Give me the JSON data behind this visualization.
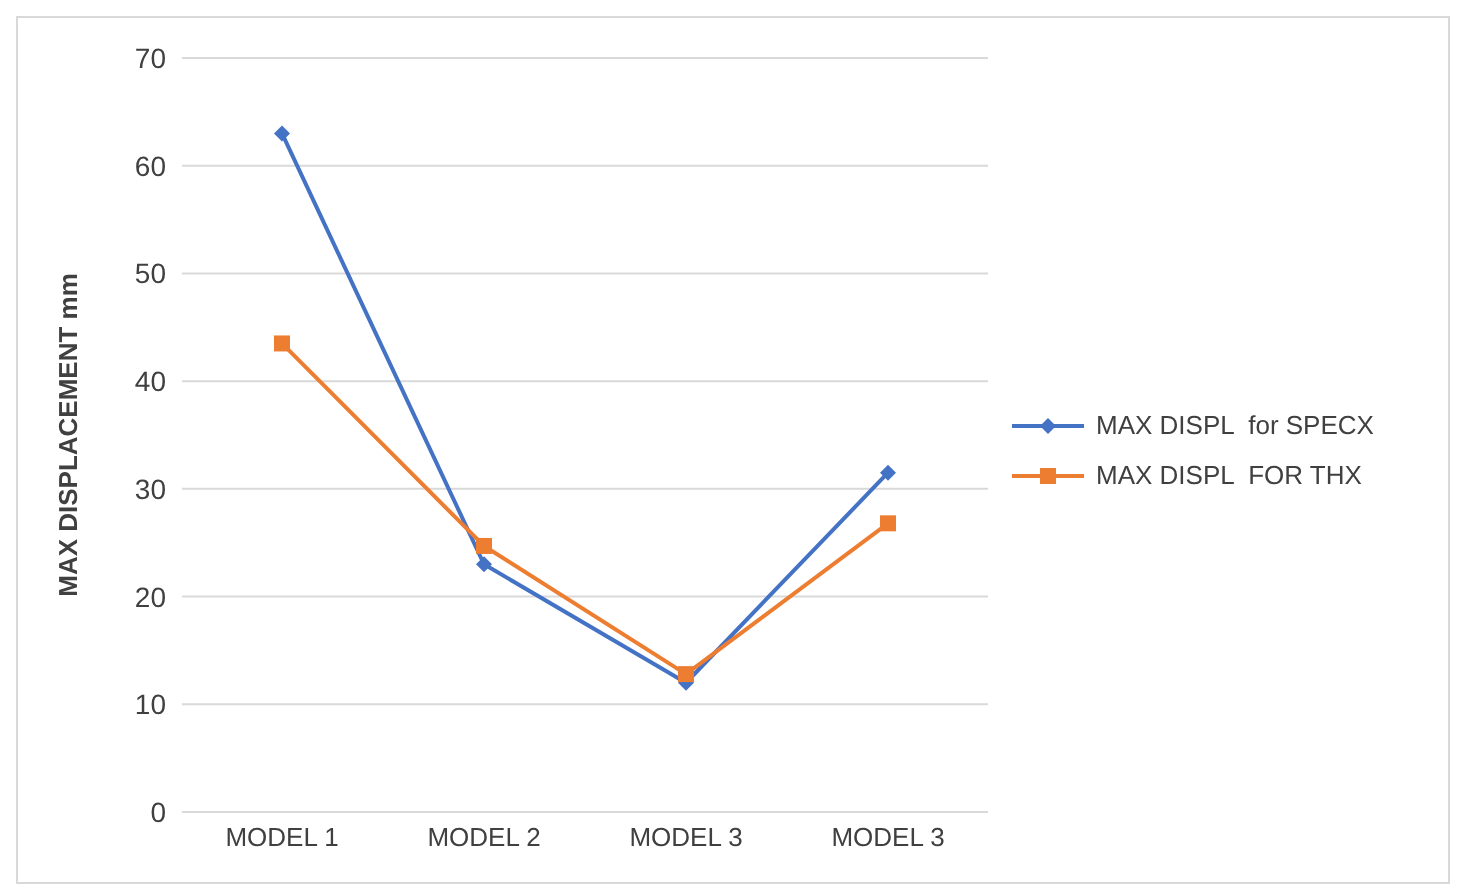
{
  "chart_data": {
    "type": "line",
    "ylabel": "MAX DISPLACEMENT  mm",
    "categories": [
      "MODEL 1",
      "MODEL 2",
      "MODEL 3",
      "MODEL 3"
    ],
    "series": [
      {
        "name": "MAX DISPL  for SPECX",
        "color": "#4472c4",
        "marker": "diamond",
        "values": [
          63,
          23,
          12,
          31.5
        ]
      },
      {
        "name": "MAX DISPL  FOR THX",
        "color": "#ed7d31",
        "marker": "square",
        "values": [
          43.5,
          24.7,
          12.8,
          26.8
        ]
      }
    ],
    "ylim": [
      0,
      70
    ],
    "yticks": [
      0,
      10,
      20,
      30,
      40,
      50,
      60,
      70
    ],
    "grid": "y",
    "legend": "right"
  }
}
